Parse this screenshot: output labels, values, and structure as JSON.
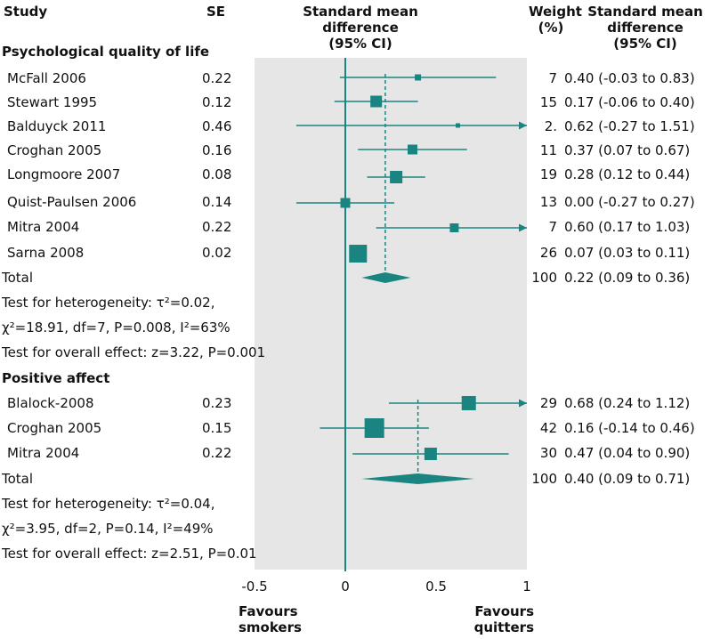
{
  "headers": {
    "study": "Study",
    "se": "SE",
    "smd_line1": "Standard mean",
    "smd_line2": "difference",
    "smd_line3": "(95% CI)",
    "weight_line1": "Weight",
    "weight_line2": "(%)",
    "ci_line1": "Standard mean",
    "ci_line2": "difference",
    "ci_line3": "(95% CI)"
  },
  "footer": {
    "left_line1": "Favours",
    "left_line2": "smokers",
    "right_line1": "Favours",
    "right_line2": "quitters"
  },
  "chart_data": {
    "type": "forest",
    "xlim": [
      -0.5,
      1
    ],
    "x_ticks": [
      {
        "value": -0.5,
        "label": "-0.5"
      },
      {
        "value": 0,
        "label": "0"
      },
      {
        "value": 0.5,
        "label": "0.5"
      },
      {
        "value": 1,
        "label": "1"
      }
    ],
    "groups": [
      {
        "title": "Psychological quality of life",
        "studies": [
          {
            "name": "McFall 2006",
            "se": "0.22",
            "smd": 0.4,
            "lo": -0.03,
            "hi": 0.83,
            "weight": "7",
            "ci_text": "0.40 (-0.03 to 0.83)",
            "box": 7,
            "arrow": false
          },
          {
            "name": "Stewart 1995",
            "se": "0.12",
            "smd": 0.17,
            "lo": -0.06,
            "hi": 0.4,
            "weight": "15",
            "ci_text": "0.17 (-0.06 to 0.40)",
            "box": 13,
            "arrow": false
          },
          {
            "name": "Balduyck 2011",
            "se": "0.46",
            "smd": 0.62,
            "lo": -0.27,
            "hi": 1.51,
            "weight": "2.",
            "ci_text": "0.62 (-0.27 to 1.51)",
            "box": 5,
            "arrow": true
          },
          {
            "name": "Croghan 2005",
            "se": "0.16",
            "smd": 0.37,
            "lo": 0.07,
            "hi": 0.67,
            "weight": "11",
            "ci_text": "0.37 (0.07 to 0.67)",
            "box": 11,
            "arrow": false
          },
          {
            "name": "Longmoore 2007",
            "se": "0.08",
            "smd": 0.28,
            "lo": 0.12,
            "hi": 0.44,
            "weight": "19",
            "ci_text": "0.28 (0.12 to 0.44)",
            "box": 14,
            "arrow": false
          },
          {
            "name": "Quist-Paulsen 2006",
            "se": "0.14",
            "smd": 0.0,
            "lo": -0.27,
            "hi": 0.27,
            "weight": "13",
            "ci_text": "0.00 (-0.27 to 0.27)",
            "box": 11,
            "arrow": false
          },
          {
            "name": "Mitra 2004",
            "se": "0.22",
            "smd": 0.6,
            "lo": 0.17,
            "hi": 1.03,
            "weight": "7",
            "ci_text": "0.60 (0.17 to 1.03)",
            "box": 10,
            "arrow": true
          },
          {
            "name": "Sarna 2008",
            "se": "0.02",
            "smd": 0.07,
            "lo": 0.03,
            "hi": 0.11,
            "weight": "26",
            "ci_text": "0.07 (0.03 to 0.11)",
            "box": 20,
            "arrow": false
          }
        ],
        "total": {
          "label": "Total",
          "weight": "100",
          "ci_text": "0.22 (0.09 to 0.36)",
          "smd": 0.22,
          "lo": 0.09,
          "hi": 0.36
        },
        "stats": [
          "Test for heterogeneity: τ²=0.02,",
          "χ²=18.91, df=7, P=0.008, I²=63%",
          "Test for overall effect: z=3.22, P=0.001"
        ]
      },
      {
        "title": "Positive affect",
        "studies": [
          {
            "name": "Blalock-2008",
            "se": "0.23",
            "smd": 0.68,
            "lo": 0.24,
            "hi": 1.12,
            "weight": "29",
            "ci_text": "0.68 (0.24 to 1.12)",
            "box": 16,
            "arrow": true
          },
          {
            "name": "Croghan 2005",
            "se": "0.15",
            "smd": 0.16,
            "lo": -0.14,
            "hi": 0.46,
            "weight": "42",
            "ci_text": "0.16 (-0.14 to 0.46)",
            "box": 22,
            "arrow": false
          },
          {
            "name": "Mitra 2004",
            "se": "0.22",
            "smd": 0.47,
            "lo": 0.04,
            "hi": 0.9,
            "weight": "30",
            "ci_text": "0.47 (0.04 to 0.90)",
            "box": 14,
            "arrow": false
          }
        ],
        "total": {
          "label": "Total",
          "weight": "100",
          "ci_text": "0.40 (0.09 to 0.71)",
          "smd": 0.4,
          "lo": 0.09,
          "hi": 0.71
        },
        "stats": [
          "Test for heterogeneity: τ²=0.04,",
          "χ²=3.95, df=2, P=0.14, I²=49%",
          "Test for overall effect: z=2.51, P=0.01"
        ]
      }
    ],
    "colors": {
      "marker": "#1a8580",
      "panel": "#e6e6e6",
      "text": "#111111"
    }
  }
}
